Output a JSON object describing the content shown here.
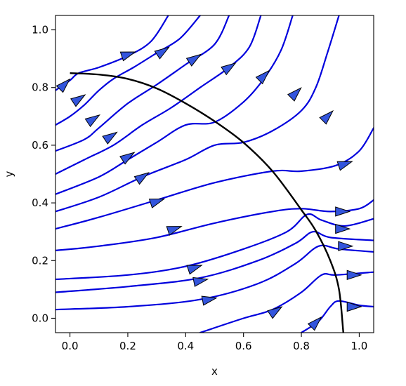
{
  "chart_data": {
    "type": "streamplot",
    "xlabel": "x",
    "ylabel": "y",
    "xlim": [
      -0.05,
      1.05
    ],
    "ylim": [
      -0.05,
      1.05
    ],
    "xticks": [
      "0.0",
      "0.2",
      "0.4",
      "0.6",
      "0.8",
      "1.0"
    ],
    "yticks": [
      "0.0",
      "0.2",
      "0.4",
      "0.6",
      "0.8",
      "1.0"
    ],
    "grid": false,
    "stream_color": "#0000dd",
    "arrow_fill": "#3355dd",
    "boundary_color": "#000000",
    "boundary": {
      "shape": "circular-arc",
      "points": [
        [
          0.0,
          0.85
        ],
        [
          0.1,
          0.845
        ],
        [
          0.2,
          0.83
        ],
        [
          0.3,
          0.797
        ],
        [
          0.4,
          0.745
        ],
        [
          0.5,
          0.683
        ],
        [
          0.6,
          0.609
        ],
        [
          0.7,
          0.51
        ],
        [
          0.8,
          0.376
        ],
        [
          0.85,
          0.303
        ],
        [
          0.9,
          0.2
        ],
        [
          0.93,
          0.1
        ],
        [
          0.945,
          -0.05
        ]
      ]
    },
    "streamlines": [
      [
        [
          -0.05,
          0.79
        ],
        [
          0.0,
          0.825
        ],
        [
          0.03,
          0.85
        ],
        [
          0.1,
          0.87
        ],
        [
          0.2,
          0.91
        ],
        [
          0.28,
          0.96
        ],
        [
          0.34,
          1.05
        ]
      ],
      [
        [
          -0.05,
          0.67
        ],
        [
          0.0,
          0.7
        ],
        [
          0.05,
          0.74
        ],
        [
          0.1,
          0.79
        ],
        [
          0.15,
          0.83
        ],
        [
          0.22,
          0.87
        ],
        [
          0.3,
          0.92
        ],
        [
          0.38,
          0.97
        ],
        [
          0.45,
          1.05
        ]
      ],
      [
        [
          -0.05,
          0.58
        ],
        [
          0.05,
          0.62
        ],
        [
          0.1,
          0.66
        ],
        [
          0.2,
          0.745
        ],
        [
          0.3,
          0.81
        ],
        [
          0.4,
          0.88
        ],
        [
          0.5,
          0.95
        ],
        [
          0.55,
          1.05
        ]
      ],
      [
        [
          -0.05,
          0.5
        ],
        [
          0.05,
          0.55
        ],
        [
          0.15,
          0.6
        ],
        [
          0.25,
          0.67
        ],
        [
          0.35,
          0.73
        ],
        [
          0.45,
          0.8
        ],
        [
          0.55,
          0.87
        ],
        [
          0.62,
          0.94
        ],
        [
          0.66,
          1.05
        ]
      ],
      [
        [
          -0.05,
          0.43
        ],
        [
          0.1,
          0.49
        ],
        [
          0.2,
          0.55
        ],
        [
          0.3,
          0.61
        ],
        [
          0.4,
          0.67
        ],
        [
          0.5,
          0.68
        ],
        [
          0.6,
          0.75
        ],
        [
          0.67,
          0.83
        ],
        [
          0.73,
          0.93
        ],
        [
          0.77,
          1.05
        ]
      ],
      [
        [
          -0.05,
          0.37
        ],
        [
          0.1,
          0.42
        ],
        [
          0.25,
          0.49
        ],
        [
          0.4,
          0.55
        ],
        [
          0.5,
          0.6
        ],
        [
          0.6,
          0.61
        ],
        [
          0.7,
          0.65
        ],
        [
          0.8,
          0.72
        ],
        [
          0.85,
          0.8
        ],
        [
          0.89,
          0.92
        ],
        [
          0.93,
          1.05
        ]
      ],
      [
        [
          -0.05,
          0.31
        ],
        [
          0.1,
          0.35
        ],
        [
          0.3,
          0.41
        ],
        [
          0.5,
          0.47
        ],
        [
          0.7,
          0.51
        ],
        [
          0.8,
          0.51
        ],
        [
          0.92,
          0.53
        ],
        [
          1.0,
          0.58
        ],
        [
          1.05,
          0.66
        ]
      ],
      [
        [
          -0.05,
          0.235
        ],
        [
          0.1,
          0.25
        ],
        [
          0.3,
          0.28
        ],
        [
          0.5,
          0.33
        ],
        [
          0.7,
          0.37
        ],
        [
          0.8,
          0.38
        ],
        [
          0.9,
          0.37
        ],
        [
          1.0,
          0.38
        ],
        [
          1.05,
          0.41
        ]
      ],
      [
        [
          -0.05,
          0.135
        ],
        [
          0.2,
          0.15
        ],
        [
          0.4,
          0.18
        ],
        [
          0.6,
          0.24
        ],
        [
          0.75,
          0.3
        ],
        [
          0.82,
          0.36
        ],
        [
          0.87,
          0.34
        ],
        [
          0.95,
          0.32
        ],
        [
          1.05,
          0.345
        ]
      ],
      [
        [
          -0.05,
          0.09
        ],
        [
          0.2,
          0.11
        ],
        [
          0.45,
          0.14
        ],
        [
          0.65,
          0.2
        ],
        [
          0.78,
          0.26
        ],
        [
          0.84,
          0.3
        ],
        [
          0.9,
          0.28
        ],
        [
          1.05,
          0.27
        ]
      ],
      [
        [
          -0.05,
          0.03
        ],
        [
          0.2,
          0.04
        ],
        [
          0.45,
          0.065
        ],
        [
          0.65,
          0.12
        ],
        [
          0.78,
          0.19
        ],
        [
          0.86,
          0.25
        ],
        [
          0.93,
          0.24
        ],
        [
          1.05,
          0.23
        ]
      ],
      [
        [
          0.45,
          -0.05
        ],
        [
          0.6,
          0.0
        ],
        [
          0.7,
          0.03
        ],
        [
          0.8,
          0.09
        ],
        [
          0.87,
          0.15
        ],
        [
          0.92,
          0.15
        ],
        [
          1.05,
          0.16
        ]
      ],
      [
        [
          0.8,
          -0.05
        ],
        [
          0.86,
          -0.01
        ],
        [
          0.9,
          0.04
        ],
        [
          0.93,
          0.06
        ],
        [
          1.0,
          0.045
        ],
        [
          1.05,
          0.04
        ]
      ]
    ],
    "arrows": [
      [
        [
          -0.02,
          0.81
        ],
        [
          -0.01,
          0.82
        ]
      ],
      [
        [
          0.03,
          0.76
        ],
        [
          0.045,
          0.77
        ]
      ],
      [
        [
          0.08,
          0.69
        ],
        [
          0.095,
          0.7
        ]
      ],
      [
        [
          0.14,
          0.63
        ],
        [
          0.155,
          0.64
        ]
      ],
      [
        [
          0.2,
          0.56
        ],
        [
          0.215,
          0.57
        ]
      ],
      [
        [
          0.25,
          0.49
        ],
        [
          0.265,
          0.5
        ]
      ],
      [
        [
          0.3,
          0.405
        ],
        [
          0.315,
          0.41
        ]
      ],
      [
        [
          0.36,
          0.31
        ],
        [
          0.375,
          0.315
        ]
      ],
      [
        [
          0.43,
          0.175
        ],
        [
          0.445,
          0.18
        ]
      ],
      [
        [
          0.45,
          0.13
        ],
        [
          0.465,
          0.133
        ]
      ],
      [
        [
          0.48,
          0.065
        ],
        [
          0.495,
          0.068
        ]
      ],
      [
        [
          0.2,
          0.915
        ],
        [
          0.215,
          0.92
        ]
      ],
      [
        [
          0.32,
          0.925
        ],
        [
          0.335,
          0.935
        ]
      ],
      [
        [
          0.43,
          0.9
        ],
        [
          0.445,
          0.91
        ]
      ],
      [
        [
          0.55,
          0.87
        ],
        [
          0.565,
          0.88
        ]
      ],
      [
        [
          0.67,
          0.84
        ],
        [
          0.68,
          0.85
        ]
      ],
      [
        [
          0.78,
          0.78
        ],
        [
          0.79,
          0.79
        ]
      ],
      [
        [
          0.89,
          0.7
        ],
        [
          0.9,
          0.71
        ]
      ],
      [
        [
          0.95,
          0.535
        ],
        [
          0.965,
          0.54
        ]
      ],
      [
        [
          0.94,
          0.37
        ],
        [
          0.955,
          0.37
        ]
      ],
      [
        [
          0.94,
          0.31
        ],
        [
          0.955,
          0.31
        ]
      ],
      [
        [
          0.95,
          0.25
        ],
        [
          0.965,
          0.25
        ]
      ],
      [
        [
          0.98,
          0.15
        ],
        [
          0.995,
          0.15
        ]
      ],
      [
        [
          0.98,
          0.04
        ],
        [
          0.995,
          0.04
        ]
      ],
      [
        [
          0.71,
          0.025
        ],
        [
          0.725,
          0.035
        ]
      ],
      [
        [
          0.85,
          -0.015
        ],
        [
          0.86,
          -0.005
        ]
      ]
    ]
  }
}
